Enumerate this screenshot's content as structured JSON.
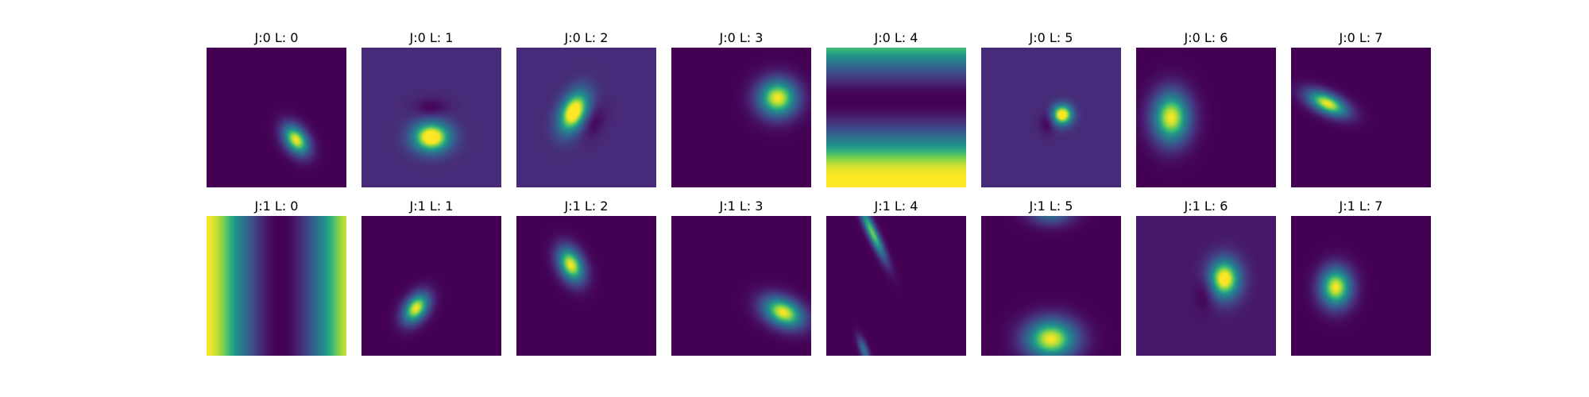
{
  "chart_data": {
    "type": "heatmap",
    "colormap": "viridis",
    "layout": {
      "rows": 2,
      "cols": 8
    },
    "axes_visible": false,
    "panels": [
      {
        "title": "J:0 L: 0",
        "background": 0.0,
        "blobs": [
          {
            "cx": 0.64,
            "cy": 0.66,
            "sx": 0.055,
            "sy": 0.085,
            "angle": -35,
            "amp": 1.0
          }
        ]
      },
      {
        "title": "J:0 L: 1",
        "background": 0.15,
        "blobs": [
          {
            "cx": 0.5,
            "cy": 0.64,
            "sx": 0.095,
            "sy": 0.075,
            "angle": 0,
            "amp": 1.0
          },
          {
            "cx": 0.5,
            "cy": 0.43,
            "sx": 0.08,
            "sy": 0.045,
            "angle": 0,
            "amp": -0.15
          }
        ]
      },
      {
        "title": "J:0 L: 2",
        "background": 0.15,
        "blobs": [
          {
            "cx": 0.41,
            "cy": 0.46,
            "sx": 0.065,
            "sy": 0.11,
            "angle": 25,
            "amp": 1.0
          },
          {
            "cx": 0.55,
            "cy": 0.53,
            "sx": 0.05,
            "sy": 0.085,
            "angle": 25,
            "amp": -0.15
          }
        ]
      },
      {
        "title": "J:0 L: 3",
        "background": 0.0,
        "blobs": [
          {
            "cx": 0.76,
            "cy": 0.36,
            "sx": 0.1,
            "sy": 0.095,
            "angle": 0,
            "amp": 1.0
          }
        ]
      },
      {
        "title": "J:0 L: 4",
        "background": 0.0,
        "stripes": {
          "direction": "horizontal",
          "min_at": 0.38,
          "amp": 1.0
        }
      },
      {
        "title": "J:0 L: 5",
        "background": 0.15,
        "blobs": [
          {
            "cx": 0.58,
            "cy": 0.48,
            "sx": 0.05,
            "sy": 0.05,
            "angle": 0,
            "amp": 1.0
          },
          {
            "cx": 0.47,
            "cy": 0.54,
            "sx": 0.035,
            "sy": 0.055,
            "angle": 0,
            "amp": -0.15
          }
        ]
      },
      {
        "title": "J:0 L: 6",
        "background": 0.0,
        "blobs": [
          {
            "cx": 0.25,
            "cy": 0.5,
            "sx": 0.095,
            "sy": 0.13,
            "angle": 0,
            "amp": 1.0
          }
        ]
      },
      {
        "title": "J:0 L: 7",
        "background": 0.0,
        "blobs": [
          {
            "cx": 0.26,
            "cy": 0.4,
            "sx": 0.11,
            "sy": 0.05,
            "angle": 25,
            "amp": 1.0
          }
        ]
      },
      {
        "title": "J:1 L: 0",
        "background": 0.0,
        "stripes": {
          "direction": "vertical",
          "min_at": 0.53,
          "amp": 1.0
        }
      },
      {
        "title": "J:1 L: 1",
        "background": 0.0,
        "blobs": [
          {
            "cx": 0.39,
            "cy": 0.66,
            "sx": 0.055,
            "sy": 0.085,
            "angle": 35,
            "amp": 1.0
          }
        ]
      },
      {
        "title": "J:1 L: 2",
        "background": 0.0,
        "blobs": [
          {
            "cx": 0.39,
            "cy": 0.35,
            "sx": 0.06,
            "sy": 0.095,
            "angle": -25,
            "amp": 1.0
          }
        ]
      },
      {
        "title": "J:1 L: 3",
        "background": 0.0,
        "blobs": [
          {
            "cx": 0.8,
            "cy": 0.69,
            "sx": 0.11,
            "sy": 0.07,
            "angle": 25,
            "amp": 1.0
          }
        ]
      },
      {
        "title": "J:1 L: 4",
        "background": 0.0,
        "blobs": [
          {
            "cx": 0.33,
            "cy": 0.12,
            "sx": 0.025,
            "sy": 0.15,
            "angle": -25,
            "amp": 0.85
          },
          {
            "cx": 0.27,
            "cy": 0.96,
            "sx": 0.02,
            "sy": 0.07,
            "angle": -20,
            "amp": 0.5
          }
        ]
      },
      {
        "title": "J:1 L: 5",
        "background": 0.0,
        "blobs": [
          {
            "cx": 0.5,
            "cy": 0.88,
            "sx": 0.13,
            "sy": 0.1,
            "angle": 0,
            "amp": 1.0
          },
          {
            "cx": 0.5,
            "cy": -0.02,
            "sx": 0.11,
            "sy": 0.06,
            "angle": 0,
            "amp": 0.45
          }
        ]
      },
      {
        "title": "J:1 L: 6",
        "background": 0.08,
        "blobs": [
          {
            "cx": 0.63,
            "cy": 0.45,
            "sx": 0.08,
            "sy": 0.1,
            "angle": 0,
            "amp": 1.0
          },
          {
            "cx": 0.5,
            "cy": 0.54,
            "sx": 0.05,
            "sy": 0.085,
            "angle": 0,
            "amp": -0.15
          }
        ]
      },
      {
        "title": "J:1 L: 7",
        "background": 0.0,
        "blobs": [
          {
            "cx": 0.32,
            "cy": 0.51,
            "sx": 0.08,
            "sy": 0.1,
            "angle": 0,
            "amp": 1.0
          }
        ]
      }
    ]
  }
}
